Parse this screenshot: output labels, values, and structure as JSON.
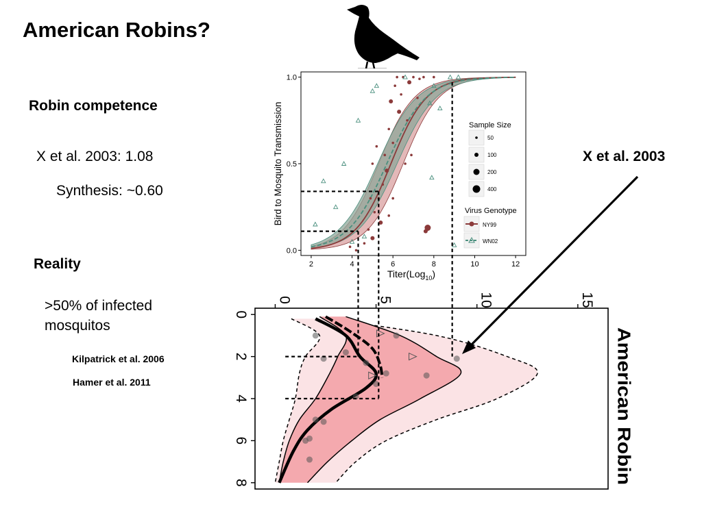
{
  "slide": {
    "title": "American Robins?",
    "competence_heading": "Robin competence",
    "competence_lines": [
      "X et al. 2003: 1.08",
      "Synthesis: ~0.60"
    ],
    "reality_heading": "Reality",
    "reality_text_line1": ">50% of infected",
    "reality_text_line2": "mosquitos",
    "refs": [
      "Kilpatrick et al. 2006",
      "Hamer et al. 2011"
    ],
    "callout_label": "X et al. 2003",
    "species_label": "American Robin"
  },
  "chart_data": [
    {
      "type": "scatter",
      "xlabel": "Titer(Log",
      "xlabel_sub": "10",
      "xlabel_end": ")",
      "ylabel": "Bird to Mosquito Transmission",
      "xlim": [
        1.5,
        12.5
      ],
      "ylim": [
        -0.03,
        1.03
      ],
      "xticks": [
        2,
        4,
        6,
        8,
        10,
        12
      ],
      "yticks": [
        0.0,
        0.5,
        1.0
      ],
      "ytick_labels": [
        "0.0",
        "0.5",
        "1.0"
      ],
      "legend_size_title": "Sample Size",
      "legend_sizes": [
        50,
        100,
        200,
        400
      ],
      "legend_genotype_title": "Virus Genotype",
      "legend_genotypes": [
        "NY99",
        "WN02"
      ],
      "series": [
        {
          "name": "NY99",
          "color": "#8b3a3a",
          "curve": {
            "x0": 5.9,
            "k": 1.15
          },
          "points": [
            {
              "x": 3.9,
              "y": 0.02,
              "n": 50
            },
            {
              "x": 4.2,
              "y": 0.0,
              "n": 50
            },
            {
              "x": 4.6,
              "y": 0.04,
              "n": 50
            },
            {
              "x": 4.8,
              "y": 0.12,
              "n": 50
            },
            {
              "x": 5.0,
              "y": 0.07,
              "n": 100
            },
            {
              "x": 5.1,
              "y": 0.22,
              "n": 50
            },
            {
              "x": 5.3,
              "y": 0.3,
              "n": 50
            },
            {
              "x": 5.4,
              "y": 0.16,
              "n": 100
            },
            {
              "x": 5.5,
              "y": 0.38,
              "n": 50
            },
            {
              "x": 5.6,
              "y": 0.55,
              "n": 50
            },
            {
              "x": 5.7,
              "y": 0.46,
              "n": 100
            },
            {
              "x": 5.8,
              "y": 0.7,
              "n": 50
            },
            {
              "x": 5.9,
              "y": 0.86,
              "n": 100
            },
            {
              "x": 6.0,
              "y": 0.62,
              "n": 50
            },
            {
              "x": 6.1,
              "y": 0.95,
              "n": 50
            },
            {
              "x": 6.2,
              "y": 1.0,
              "n": 50
            },
            {
              "x": 6.3,
              "y": 0.8,
              "n": 100
            },
            {
              "x": 6.4,
              "y": 0.9,
              "n": 50
            },
            {
              "x": 6.5,
              "y": 1.0,
              "n": 50
            },
            {
              "x": 6.7,
              "y": 0.75,
              "n": 50
            },
            {
              "x": 6.8,
              "y": 0.97,
              "n": 100
            },
            {
              "x": 7.0,
              "y": 1.0,
              "n": 50
            },
            {
              "x": 7.2,
              "y": 0.88,
              "n": 50
            },
            {
              "x": 7.5,
              "y": 1.0,
              "n": 50
            },
            {
              "x": 7.7,
              "y": 0.13,
              "n": 200
            },
            {
              "x": 7.6,
              "y": 0.11,
              "n": 100
            },
            {
              "x": 8.0,
              "y": 1.0,
              "n": 50
            },
            {
              "x": 5.2,
              "y": 0.6,
              "n": 50
            },
            {
              "x": 5.0,
              "y": 0.5,
              "n": 50
            },
            {
              "x": 4.9,
              "y": 0.3,
              "n": 50
            },
            {
              "x": 6.6,
              "y": 0.5,
              "n": 50
            },
            {
              "x": 6.9,
              "y": 0.55,
              "n": 50
            },
            {
              "x": 6.0,
              "y": 0.3,
              "n": 50
            },
            {
              "x": 5.8,
              "y": 0.2,
              "n": 50
            },
            {
              "x": 7.3,
              "y": 0.99,
              "n": 50
            }
          ]
        },
        {
          "name": "WN02",
          "color": "#4a8f7e",
          "curve": {
            "x0": 5.7,
            "k": 1.05
          },
          "points": [
            {
              "x": 2.2,
              "y": 0.15,
              "n": 50
            },
            {
              "x": 2.6,
              "y": 0.4,
              "n": 50
            },
            {
              "x": 3.2,
              "y": 0.25,
              "n": 50
            },
            {
              "x": 3.6,
              "y": 0.5,
              "n": 50
            },
            {
              "x": 4.0,
              "y": 0.05,
              "n": 50
            },
            {
              "x": 4.3,
              "y": 0.75,
              "n": 50
            },
            {
              "x": 4.6,
              "y": 0.08,
              "n": 50
            },
            {
              "x": 5.0,
              "y": 0.92,
              "n": 50
            },
            {
              "x": 5.2,
              "y": 0.95,
              "n": 50
            },
            {
              "x": 7.8,
              "y": 0.85,
              "n": 50
            },
            {
              "x": 8.0,
              "y": 0.95,
              "n": 50
            },
            {
              "x": 8.3,
              "y": 0.82,
              "n": 50
            },
            {
              "x": 9.2,
              "y": 1.0,
              "n": 50
            },
            {
              "x": 8.8,
              "y": 1.0,
              "n": 50
            },
            {
              "x": 6.6,
              "y": 1.0,
              "n": 50
            },
            {
              "x": 7.9,
              "y": 0.42,
              "n": 50
            },
            {
              "x": 9.0,
              "y": 0.03,
              "n": 50
            }
          ]
        }
      ],
      "threshold_lines": [
        {
          "x": 4.3,
          "y": 0.11
        },
        {
          "x": 5.3,
          "y": 0.34
        },
        {
          "x": 8.9,
          "y": 0.97
        }
      ]
    },
    {
      "type": "area",
      "orientation": "rotated",
      "ylabel": "American Robin",
      "titer_ticks": [
        0,
        5,
        10,
        15
      ],
      "titer_lim": [
        -1,
        16.5
      ],
      "day_ticks": [
        0,
        2,
        4,
        6,
        8
      ],
      "day_lim": [
        -0.3,
        8.3
      ],
      "band_outer": {
        "days": [
          0.2,
          1,
          2,
          2.8,
          4,
          5,
          6,
          7,
          8
        ],
        "lo": [
          0.8,
          2.2,
          1.5,
          1.2,
          1.0,
          0.7,
          0.4,
          0.2,
          0.0
        ],
        "hi": [
          2.5,
          8.0,
          11.5,
          13.0,
          11.0,
          8.0,
          5.5,
          4.0,
          3.0
        ]
      },
      "band_inner": {
        "days": [
          0.1,
          1,
          2,
          2.8,
          4,
          5,
          6,
          7,
          8
        ],
        "lo": [
          2.2,
          3.5,
          3.1,
          2.7,
          2.0,
          1.2,
          0.7,
          0.4,
          0.2
        ],
        "hi": [
          3.5,
          6.2,
          8.0,
          9.2,
          7.2,
          5.2,
          3.8,
          2.6,
          1.6
        ]
      },
      "mean_line": {
        "days": [
          0.2,
          1,
          2,
          2.8,
          3.5,
          4.5,
          5.5,
          6.5,
          8
        ],
        "values": [
          2.0,
          3.5,
          4.2,
          5.0,
          4.5,
          2.8,
          1.6,
          0.9,
          0.2
        ]
      },
      "mean_dashed": {
        "days": [
          0.1,
          0.8,
          1.6,
          2.4,
          3.0
        ],
        "values": [
          2.5,
          3.7,
          4.8,
          5.2,
          5.3
        ]
      },
      "points": [
        {
          "d": 1.0,
          "t": 2.0,
          "s": 1
        },
        {
          "d": 1.0,
          "t": 6.0,
          "s": 1
        },
        {
          "d": 1.8,
          "t": 3.5,
          "s": 1
        },
        {
          "d": 2.1,
          "t": 2.4,
          "s": 1
        },
        {
          "d": 2.1,
          "t": 9.0,
          "s": 1
        },
        {
          "d": 2.3,
          "t": 4.5,
          "s": 1
        },
        {
          "d": 2.8,
          "t": 5.5,
          "s": 1
        },
        {
          "d": 2.9,
          "t": 7.5,
          "s": 1
        },
        {
          "d": 3.3,
          "t": 5.0,
          "s": 1
        },
        {
          "d": 3.9,
          "t": 4.0,
          "s": 1
        },
        {
          "d": 5.0,
          "t": 2.0,
          "s": 1
        },
        {
          "d": 5.1,
          "t": 2.4,
          "s": 1
        },
        {
          "d": 5.9,
          "t": 1.7,
          "s": 1
        },
        {
          "d": 6.0,
          "t": 1.5,
          "s": 1
        },
        {
          "d": 6.9,
          "t": 1.7,
          "s": 1
        }
      ],
      "triangles": [
        {
          "d": 0.9,
          "t": 5.2
        },
        {
          "d": 2.0,
          "t": 6.8
        },
        {
          "d": 2.9,
          "t": 4.8
        }
      ]
    }
  ]
}
